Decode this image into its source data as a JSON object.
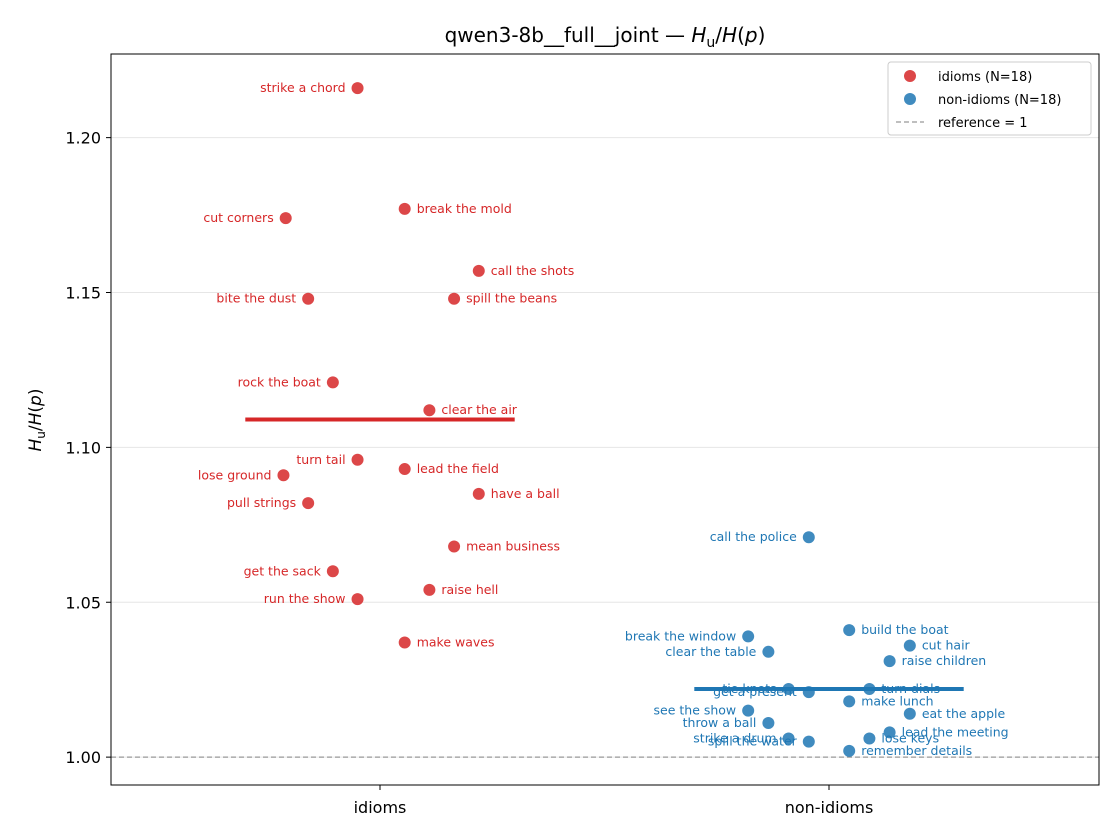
{
  "chart_data": {
    "type": "scatter",
    "title_plain": "qwen3-8b__full__joint — ",
    "title_math": "H_u/H(p)",
    "ylabel": "H_u/H(p)",
    "xlabel": "",
    "categories": [
      "idioms",
      "non-idioms"
    ],
    "ylim": [
      0.991,
      1.227
    ],
    "yticks": [
      1.0,
      1.05,
      1.1,
      1.15,
      1.2
    ],
    "ytick_labels": [
      "1.00",
      "1.05",
      "1.10",
      "1.15",
      "1.20"
    ],
    "grid": "horizontal",
    "legend_position": "top-right",
    "reference_value": 1.0,
    "series": [
      {
        "name": "idioms (N=18)",
        "category": "idioms",
        "color": "#d62728",
        "mean": 1.109,
        "points": [
          {
            "label": "strike a chord",
            "jitter": -0.05,
            "y": 1.216,
            "side": "left"
          },
          {
            "label": "cut corners",
            "jitter": -0.21,
            "y": 1.174,
            "side": "left"
          },
          {
            "label": "break the mold",
            "jitter": 0.055,
            "y": 1.177,
            "side": "right"
          },
          {
            "label": "call the shots",
            "jitter": 0.22,
            "y": 1.157,
            "side": "right"
          },
          {
            "label": "bite the dust",
            "jitter": -0.16,
            "y": 1.148,
            "side": "left"
          },
          {
            "label": "spill the beans",
            "jitter": 0.165,
            "y": 1.148,
            "side": "right"
          },
          {
            "label": "rock the boat",
            "jitter": -0.105,
            "y": 1.121,
            "side": "left"
          },
          {
            "label": "clear the air",
            "jitter": 0.11,
            "y": 1.112,
            "side": "right"
          },
          {
            "label": "turn tail",
            "jitter": -0.05,
            "y": 1.096,
            "side": "left"
          },
          {
            "label": "lead the field",
            "jitter": 0.055,
            "y": 1.093,
            "side": "right"
          },
          {
            "label": "lose ground",
            "jitter": -0.215,
            "y": 1.091,
            "side": "left"
          },
          {
            "label": "have a ball",
            "jitter": 0.22,
            "y": 1.085,
            "side": "right"
          },
          {
            "label": "pull strings",
            "jitter": -0.16,
            "y": 1.082,
            "side": "left"
          },
          {
            "label": "mean business",
            "jitter": 0.165,
            "y": 1.068,
            "side": "right"
          },
          {
            "label": "get the sack",
            "jitter": -0.105,
            "y": 1.06,
            "side": "left"
          },
          {
            "label": "raise hell",
            "jitter": 0.11,
            "y": 1.054,
            "side": "right"
          },
          {
            "label": "run the show",
            "jitter": -0.05,
            "y": 1.051,
            "side": "left"
          },
          {
            "label": "make waves",
            "jitter": 0.055,
            "y": 1.037,
            "side": "right"
          }
        ]
      },
      {
        "name": "non-idioms (N=18)",
        "category": "non-idioms",
        "color": "#1f77b4",
        "mean": 1.022,
        "points": [
          {
            "label": "call the police",
            "jitter": -0.045,
            "y": 1.071,
            "side": "left"
          },
          {
            "label": "build the boat",
            "jitter": 0.045,
            "y": 1.041,
            "side": "right"
          },
          {
            "label": "break the window",
            "jitter": -0.18,
            "y": 1.039,
            "side": "left"
          },
          {
            "label": "cut hair",
            "jitter": 0.18,
            "y": 1.036,
            "side": "right"
          },
          {
            "label": "clear the table",
            "jitter": -0.135,
            "y": 1.034,
            "side": "left"
          },
          {
            "label": "raise children",
            "jitter": 0.135,
            "y": 1.031,
            "side": "right"
          },
          {
            "label": "tie knots",
            "jitter": -0.09,
            "y": 1.022,
            "side": "left"
          },
          {
            "label": "turn dials",
            "jitter": 0.09,
            "y": 1.022,
            "side": "right"
          },
          {
            "label": "get a present",
            "jitter": -0.045,
            "y": 1.021,
            "side": "left"
          },
          {
            "label": "make lunch",
            "jitter": 0.045,
            "y": 1.018,
            "side": "right"
          },
          {
            "label": "see the show",
            "jitter": -0.18,
            "y": 1.015,
            "side": "left"
          },
          {
            "label": "eat the apple",
            "jitter": 0.18,
            "y": 1.014,
            "side": "right"
          },
          {
            "label": "throw a ball",
            "jitter": -0.135,
            "y": 1.011,
            "side": "left"
          },
          {
            "label": "lead the meeting",
            "jitter": 0.135,
            "y": 1.008,
            "side": "right"
          },
          {
            "label": "strike a drum",
            "jitter": -0.09,
            "y": 1.006,
            "side": "left"
          },
          {
            "label": "lose keys",
            "jitter": 0.09,
            "y": 1.006,
            "side": "right"
          },
          {
            "label": "spill the water",
            "jitter": -0.045,
            "y": 1.005,
            "side": "left"
          },
          {
            "label": "remember details",
            "jitter": 0.045,
            "y": 1.002,
            "side": "right"
          }
        ]
      }
    ],
    "legend": [
      {
        "label": "idioms (N=18)",
        "kind": "marker",
        "color": "#d62728"
      },
      {
        "label": "non-idioms (N=18)",
        "kind": "marker",
        "color": "#1f77b4"
      },
      {
        "label": "reference = 1",
        "kind": "dashed-line",
        "color": "#999999"
      }
    ]
  }
}
